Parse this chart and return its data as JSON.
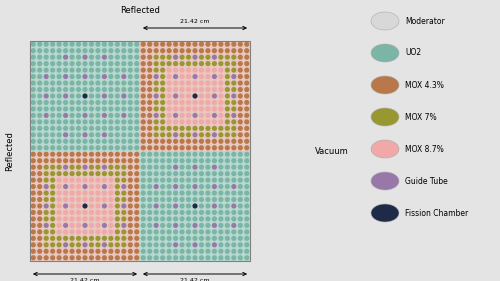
{
  "fig_width": 5.0,
  "fig_height": 2.81,
  "dpi": 100,
  "bg_color": "#e4e4e4",
  "colors": {
    "moderator": "#d8d8d8",
    "uo2": "#7ab5a5",
    "mox43": "#b8784a",
    "mox7": "#989830",
    "mox87": "#f0a8a8",
    "guide_tube": "#9878a8",
    "fission_chamber": "#1e2a48",
    "pin_bg_uo2": "#b8d8d0",
    "pin_bg_mox": "#e8c8c0"
  },
  "legend_items": [
    {
      "label": "Moderator",
      "color": "#d8d8d8"
    },
    {
      "label": "UO2",
      "color": "#7ab5a5"
    },
    {
      "label": "MOX 4.3%",
      "color": "#b8784a"
    },
    {
      "label": "MOX 7%",
      "color": "#989830"
    },
    {
      "label": "MOX 8.7%",
      "color": "#f0a8a8"
    },
    {
      "label": "Guide Tube",
      "color": "#9878a8"
    },
    {
      "label": "Fission Chamber",
      "color": "#1e2a48"
    }
  ],
  "dim_label": "21.42 cm",
  "boundary_top": "Reflected",
  "boundary_left": "Reflected",
  "boundary_right": "Vacuum",
  "boundary_bottom": "Vacuum"
}
